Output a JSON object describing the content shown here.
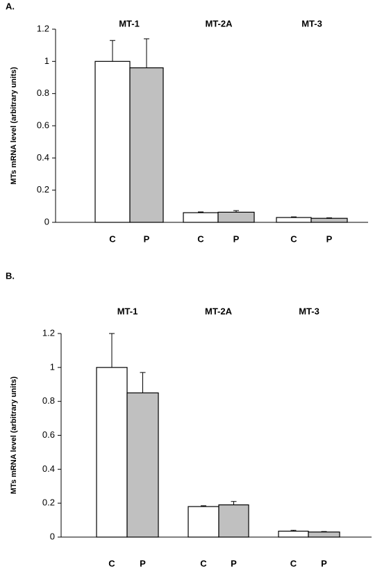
{
  "chart_data": [
    {
      "type": "bar",
      "panel": "A.",
      "ylabel": "MTs mRNA level (arbitrary units)",
      "groups": [
        "MT-1",
        "MT-2A",
        "MT-3"
      ],
      "categories": [
        "C",
        "P",
        "C",
        "P",
        "C",
        "P"
      ],
      "values": [
        1.0,
        0.96,
        0.06,
        0.063,
        0.03,
        0.025
      ],
      "errors": [
        0.13,
        0.18,
        0.005,
        0.01,
        0.004,
        0.003
      ],
      "colors": [
        "#ffffff",
        "#c0c0c0"
      ],
      "ylim": [
        0,
        1.2
      ],
      "yticks": [
        0,
        0.2,
        0.4,
        0.6,
        0.8,
        1,
        1.2
      ]
    },
    {
      "type": "bar",
      "panel": "B.",
      "ylabel": "MTs mRNA level (arbitrary units)",
      "groups": [
        "MT-1",
        "MT-2A",
        "MT-3"
      ],
      "categories": [
        "C",
        "P",
        "C",
        "P",
        "C",
        "P"
      ],
      "values": [
        1.0,
        0.85,
        0.18,
        0.19,
        0.035,
        0.03
      ],
      "errors": [
        0.2,
        0.12,
        0.005,
        0.02,
        0.005,
        0.003
      ],
      "colors": [
        "#ffffff",
        "#c0c0c0"
      ],
      "ylim": [
        0,
        1.2
      ],
      "yticks": [
        0,
        0.2,
        0.4,
        0.6,
        0.8,
        1,
        1.2
      ]
    }
  ]
}
